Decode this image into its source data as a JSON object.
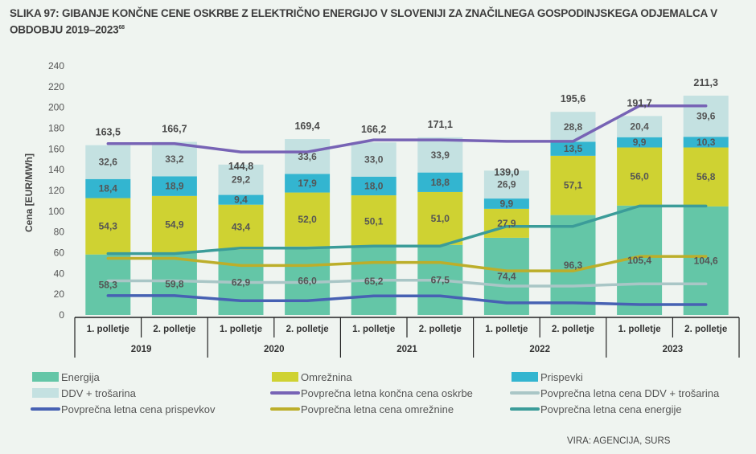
{
  "title": "SLIKA 97: GIBANJE KONČNE CENE OSKRBE Z ELEKTRIČNO ENERGIJO V SLOVENIJI ZA ZNAČILNEGA GOSPODINJSKEGA ODJEMALCA V OBDOBJU 2019–2023",
  "title_footnote": "68",
  "source": "VIRA: AGENCIJA, SURS",
  "chart_data": {
    "type": "bar",
    "stacked": true,
    "ylabel": "Cena [EUR/MWh]",
    "ylim": [
      0,
      240
    ],
    "yticks": [
      0,
      20,
      40,
      60,
      80,
      100,
      120,
      140,
      160,
      180,
      200,
      220,
      240
    ],
    "grid": false,
    "legend_position": "bottom",
    "years": [
      "2019",
      "2020",
      "2021",
      "2022",
      "2023"
    ],
    "categories": [
      "1. polletje",
      "2. polletje",
      "1. polletje",
      "2. polletje",
      "1. polletje",
      "2. polletje",
      "1. polletje",
      "2. polletje",
      "1. polletje",
      "2. polletje"
    ],
    "totals": [
      "163,5",
      "166,7",
      "144,8",
      "169,4",
      "166,2",
      "171,1",
      "139,0",
      "195,6",
      "191,7",
      "211,3"
    ],
    "series": [
      {
        "name": "Energija",
        "color": "#64c6a7",
        "values": [
          58.3,
          59.8,
          62.9,
          66.0,
          65.2,
          67.5,
          74.4,
          96.3,
          105.4,
          104.6
        ]
      },
      {
        "name": "Omrežnina",
        "color": "#cfd232",
        "values": [
          54.3,
          54.9,
          43.4,
          52.0,
          50.1,
          51.0,
          27.9,
          57.1,
          56.0,
          56.8
        ]
      },
      {
        "name": "Prispevki",
        "color": "#33b5d0",
        "values": [
          18.4,
          18.9,
          9.4,
          17.9,
          18.0,
          18.8,
          9.9,
          13.5,
          9.9,
          10.3
        ]
      },
      {
        "name": "DDV + trošarina",
        "color": "#c4e1e1",
        "values": [
          32.6,
          33.2,
          29.2,
          33.6,
          33.0,
          33.9,
          26.9,
          28.8,
          20.4,
          39.6
        ]
      }
    ],
    "lines": [
      {
        "name": "Povprečna letna končna cena oskrbe",
        "color": "#7763b5",
        "values": [
          165.1,
          157.1,
          168.7,
          167.3,
          201.5
        ]
      },
      {
        "name": "Povprečna letna cena DDV + trošarina",
        "color": "#a9c6c6",
        "values": [
          32.9,
          31.4,
          33.5,
          27.9,
          30.0
        ]
      },
      {
        "name": "Povprečna letna cena prispevkov",
        "color": "#4761b3",
        "values": [
          18.7,
          13.7,
          18.4,
          11.7,
          10.1
        ]
      },
      {
        "name": "Povprečna letna cena omrežnine",
        "color": "#bcae2a",
        "values": [
          54.6,
          47.7,
          50.6,
          42.5,
          56.4
        ]
      },
      {
        "name": "Povprečna letna cena energije",
        "color": "#3b9c99",
        "values": [
          59.1,
          64.5,
          66.4,
          85.4,
          105.0
        ]
      }
    ],
    "legend": [
      {
        "name": "Energija",
        "kind": "box",
        "color": "#64c6a7"
      },
      {
        "name": "Omrežnina",
        "kind": "box",
        "color": "#cfd232"
      },
      {
        "name": "Prispevki",
        "kind": "box",
        "color": "#33b5d0"
      },
      {
        "name": "DDV + trošarina",
        "kind": "box",
        "color": "#c4e1e1"
      },
      {
        "name": "Povprečna letna končna cena oskrbe",
        "kind": "line",
        "color": "#7763b5"
      },
      {
        "name": "Povprečna letna cena DDV + trošarina",
        "kind": "line",
        "color": "#a9c6c6"
      },
      {
        "name": "Povprečna letna cena prispevkov",
        "kind": "line",
        "color": "#4761b3"
      },
      {
        "name": "Povprečna letna cena omrežnine",
        "kind": "line",
        "color": "#bcae2a"
      },
      {
        "name": "Povprečna letna cena energije",
        "kind": "line",
        "color": "#3b9c99"
      }
    ]
  }
}
